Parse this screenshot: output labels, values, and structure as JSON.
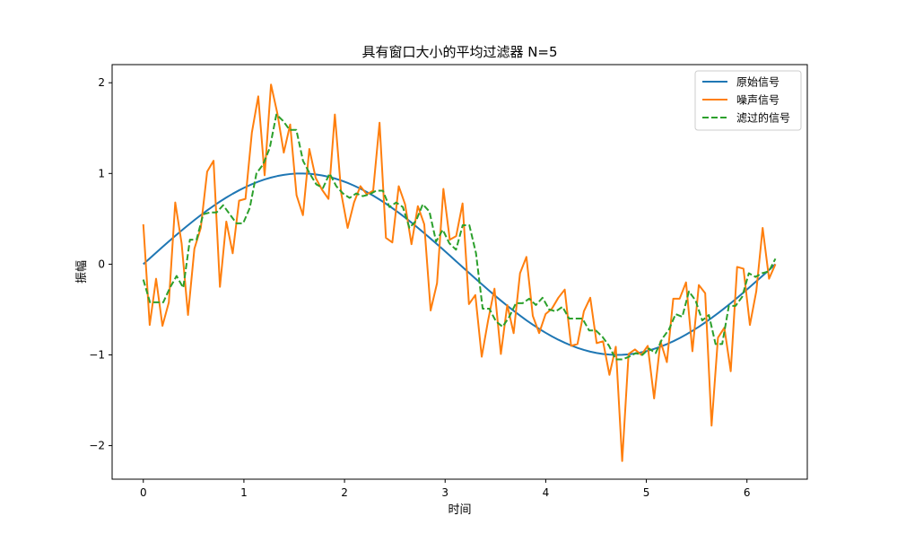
{
  "chart_data": {
    "type": "line",
    "title": "具有窗口大小的平均过滤器 N=5",
    "xlabel": "时间",
    "ylabel": "振幅",
    "xlim": [
      -0.31,
      6.6
    ],
    "ylim": [
      -2.37,
      2.2
    ],
    "xticks": [
      0,
      1,
      2,
      3,
      4,
      5,
      6
    ],
    "yticks": [
      -2,
      -1,
      0,
      1,
      2
    ],
    "xtick_labels": [
      "0",
      "1",
      "2",
      "3",
      "4",
      "5",
      "6"
    ],
    "ytick_labels": [
      "−2",
      "−1",
      "0",
      "1",
      "2"
    ],
    "grid": false,
    "legend_position": "top-right",
    "x_start": 0,
    "x_end": 6.2832,
    "series": [
      {
        "name": "原始信号",
        "color": "#1f77b4",
        "style": "solid",
        "function": "sin",
        "samples": 100
      },
      {
        "name": "噪声信号",
        "color": "#ff7f0e",
        "style": "solid",
        "values": [
          0.44,
          -0.67,
          -0.16,
          -0.68,
          -0.42,
          0.68,
          0.23,
          -0.56,
          0.17,
          0.4,
          1.02,
          1.14,
          -0.25,
          0.47,
          0.12,
          0.7,
          0.72,
          1.45,
          1.85,
          0.98,
          1.98,
          1.66,
          1.23,
          1.54,
          0.76,
          0.54,
          1.27,
          0.95,
          0.82,
          0.72,
          1.65,
          0.78,
          0.4,
          0.68,
          0.86,
          0.77,
          0.81,
          1.56,
          0.29,
          0.24,
          0.86,
          0.66,
          0.22,
          0.64,
          0.44,
          -0.51,
          -0.21,
          0.83,
          0.27,
          0.31,
          0.67,
          -0.44,
          -0.34,
          -1.02,
          -0.62,
          -0.27,
          -0.99,
          -0.45,
          -0.76,
          -0.1,
          0.08,
          -0.57,
          -0.76,
          -0.55,
          -0.49,
          -0.37,
          -0.28,
          -0.9,
          -0.88,
          -0.52,
          -0.37,
          -0.87,
          -0.85,
          -1.22,
          -0.91,
          -2.17,
          -0.99,
          -0.94,
          -1.0,
          -0.9,
          -1.48,
          -0.85,
          -1.08,
          -0.38,
          -0.38,
          -0.2,
          -0.96,
          -0.23,
          -0.32,
          -1.78,
          -0.81,
          -0.7,
          -1.18,
          -0.03,
          -0.05,
          -0.67,
          -0.3,
          0.4,
          -0.16,
          0.0
        ]
      },
      {
        "name": "滤过的信号",
        "color": "#2ca02c",
        "style": "dashed",
        "values": [
          -0.17,
          -0.42,
          -0.42,
          -0.42,
          -0.26,
          -0.13,
          -0.26,
          0.27,
          0.27,
          0.55,
          0.57,
          0.57,
          0.65,
          0.55,
          0.45,
          0.45,
          0.62,
          1.0,
          1.1,
          1.28,
          1.65,
          1.58,
          1.48,
          1.48,
          1.14,
          1.0,
          0.88,
          0.84,
          1.0,
          0.86,
          0.78,
          0.73,
          0.78,
          0.75,
          0.77,
          0.81,
          0.81,
          0.63,
          0.68,
          0.63,
          0.4,
          0.48,
          0.66,
          0.58,
          0.25,
          0.38,
          0.23,
          0.16,
          0.43,
          0.43,
          0.12,
          -0.49,
          -0.49,
          -0.63,
          -0.69,
          -0.58,
          -0.43,
          -0.43,
          -0.38,
          -0.45,
          -0.37,
          -0.5,
          -0.52,
          -0.47,
          -0.6,
          -0.6,
          -0.6,
          -0.73,
          -0.73,
          -0.8,
          -0.9,
          -1.05,
          -1.05,
          -1.02,
          -0.98,
          -1.0,
          -0.93,
          -0.98,
          -0.82,
          -0.72,
          -0.55,
          -0.58,
          -0.3,
          -0.4,
          -0.62,
          -0.56,
          -0.88,
          -0.88,
          -0.46,
          -0.46,
          -0.36,
          -0.1,
          -0.14,
          -0.1,
          -0.08,
          0.06
        ]
      }
    ]
  }
}
